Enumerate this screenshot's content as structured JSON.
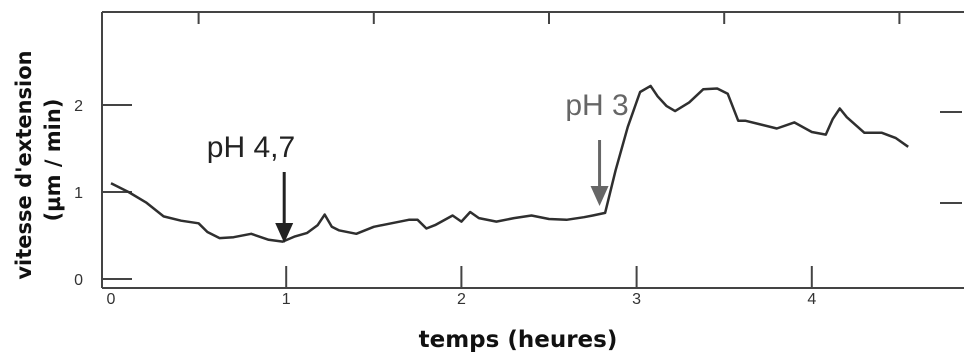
{
  "chart_data": {
    "type": "line",
    "title": "",
    "xlabel": "temps (heures)",
    "ylabel": "vitesse d'extension",
    "ylabel_unit": "(µm / min)",
    "xlim": [
      0,
      4.75
    ],
    "ylim": [
      0,
      3
    ],
    "x_ticks": [
      0,
      1,
      2,
      3,
      4
    ],
    "y_ticks": [
      0,
      1,
      2
    ],
    "x_tick_labels": [
      "0",
      "1",
      "2",
      "3",
      "4"
    ],
    "y_tick_labels": [
      "0",
      "1",
      "2"
    ],
    "grid": false,
    "series": [
      {
        "color": "#2f2f2f",
        "x": [
          0.0,
          0.1,
          0.2,
          0.3,
          0.4,
          0.5,
          0.55,
          0.62,
          0.7,
          0.8,
          0.9,
          0.98,
          1.05,
          1.12,
          1.18,
          1.22,
          1.26,
          1.3,
          1.4,
          1.5,
          1.6,
          1.7,
          1.75,
          1.8,
          1.85,
          1.95,
          2.0,
          2.05,
          2.1,
          2.2,
          2.3,
          2.4,
          2.5,
          2.6,
          2.7,
          2.75,
          2.82,
          2.88,
          2.95,
          3.02,
          3.08,
          3.12,
          3.17,
          3.22,
          3.3,
          3.38,
          3.46,
          3.52,
          3.58,
          3.62,
          3.7,
          3.8,
          3.9,
          4.0,
          4.08,
          4.12,
          4.16,
          4.2,
          4.3,
          4.4,
          4.48,
          4.55
        ],
        "y": [
          1.1,
          1.0,
          0.88,
          0.72,
          0.67,
          0.64,
          0.54,
          0.47,
          0.48,
          0.52,
          0.45,
          0.43,
          0.49,
          0.53,
          0.62,
          0.74,
          0.6,
          0.56,
          0.52,
          0.6,
          0.64,
          0.68,
          0.68,
          0.58,
          0.62,
          0.73,
          0.66,
          0.77,
          0.7,
          0.66,
          0.7,
          0.73,
          0.69,
          0.68,
          0.71,
          0.73,
          0.76,
          1.25,
          1.75,
          2.15,
          2.22,
          2.1,
          1.99,
          1.93,
          2.03,
          2.18,
          2.19,
          2.13,
          1.82,
          1.82,
          1.78,
          1.73,
          1.8,
          1.69,
          1.66,
          1.84,
          1.96,
          1.86,
          1.68,
          1.68,
          1.62,
          1.52
        ]
      }
    ],
    "annotations": [
      {
        "text": "pH 4,7",
        "x": 1.0,
        "y_tip": 0.45,
        "color": "#222222"
      },
      {
        "text": "pH 3",
        "x": 2.8,
        "y_tip": 0.8,
        "color": "#666666"
      }
    ]
  }
}
